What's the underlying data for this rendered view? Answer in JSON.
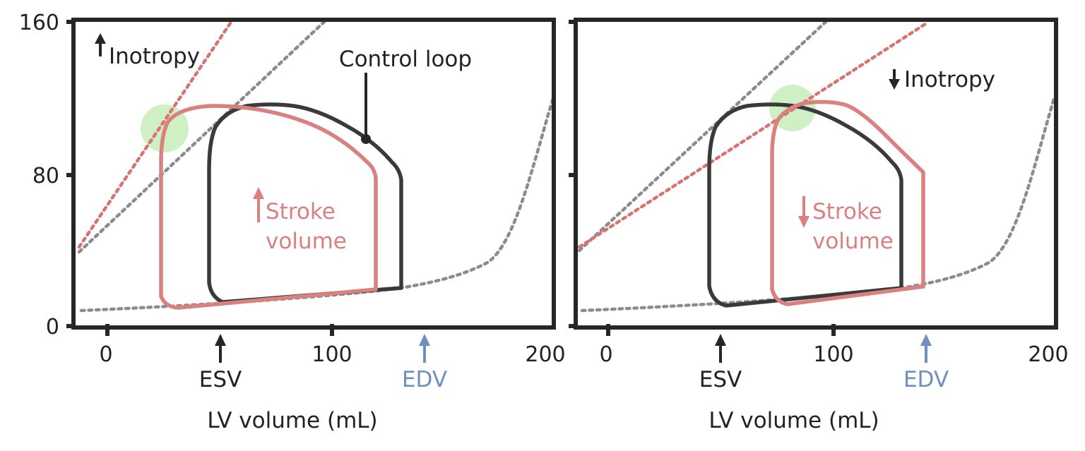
{
  "colors": {
    "axis": "#262626",
    "control_loop": "#3a3a3a",
    "altered_loop": "#d98080",
    "espvr": "#8c8c8c",
    "espvr_altered": "#d97373",
    "edpvr": "#8c8c8c",
    "highlight": "#b6e8a6",
    "edv": "#6e8fc0",
    "text": "#222222"
  },
  "y_axis": {
    "ticks": [
      "160",
      "80",
      "0"
    ],
    "range": [
      0,
      160
    ]
  },
  "panels": [
    {
      "id": "increased-inotropy",
      "x_ticks": [
        "0",
        "100",
        "200"
      ],
      "x_axis_title": "LV volume (mL)",
      "inotropy_label": "Inotropy",
      "inotropy_direction": "up",
      "control_loop_label": "Control loop",
      "stroke_volume_label": [
        "Stroke",
        "volume"
      ],
      "stroke_volume_direction": "up",
      "esv_label": "ESV",
      "edv_label": "EDV"
    },
    {
      "id": "decreased-inotropy",
      "x_ticks": [
        "0",
        "100",
        "200"
      ],
      "x_axis_title": "LV volume (mL)",
      "inotropy_label": "Inotropy",
      "inotropy_direction": "down",
      "stroke_volume_label": [
        "Stroke",
        "volume"
      ],
      "stroke_volume_direction": "down",
      "esv_label": "ESV",
      "edv_label": "EDV"
    }
  ]
}
